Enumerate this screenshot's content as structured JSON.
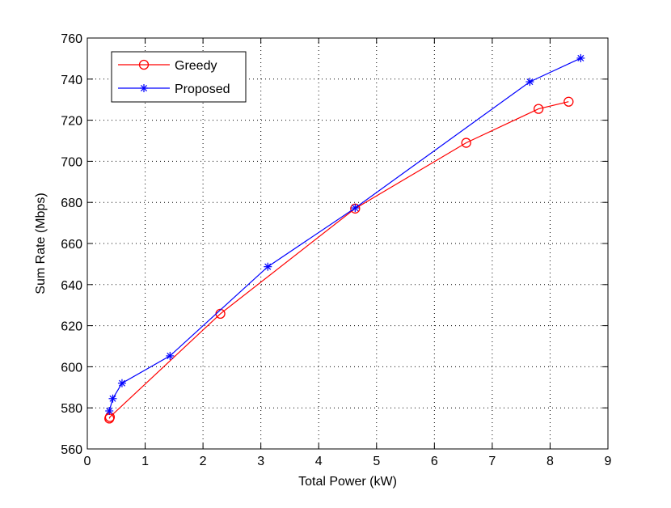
{
  "chart_data": {
    "type": "line",
    "title": "",
    "xlabel": "Total Power (kW)",
    "ylabel": "Sum Rate (Mbps)",
    "xlim": [
      0,
      9
    ],
    "ylim": [
      560,
      760
    ],
    "xticks": [
      0,
      1,
      2,
      3,
      4,
      5,
      6,
      7,
      8,
      9
    ],
    "yticks": [
      560,
      580,
      600,
      620,
      640,
      660,
      680,
      700,
      720,
      740,
      760
    ],
    "grid": true,
    "legend_position": "top-left",
    "series": [
      {
        "name": "Greedy",
        "color": "#ff0000",
        "marker": "circle",
        "x": [
          0.38,
          0.39,
          2.3,
          4.63,
          6.55,
          7.8,
          8.32
        ],
        "y": [
          574.8,
          575.5,
          625.8,
          677.0,
          709.0,
          725.5,
          729.0
        ]
      },
      {
        "name": "Proposed",
        "color": "#0000ff",
        "marker": "asterisk",
        "x": [
          0.38,
          0.44,
          0.6,
          1.43,
          3.12,
          4.63,
          7.65,
          8.53
        ],
        "y": [
          578.5,
          584.5,
          592.0,
          605.3,
          648.7,
          677.3,
          738.7,
          750.2
        ]
      }
    ]
  }
}
